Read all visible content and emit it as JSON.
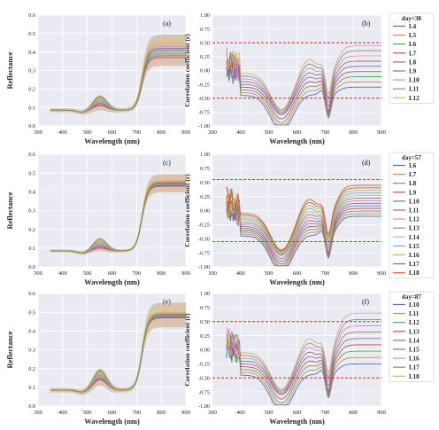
{
  "chart_data": [
    {
      "type": "line",
      "panel": "(a)",
      "title": "",
      "xlabel": "Wavelength (nm)",
      "ylabel": "Reflectance",
      "xlim": [
        300,
        900
      ],
      "ylim": [
        0,
        0.6
      ],
      "xticks": [
        300,
        400,
        500,
        600,
        700,
        800,
        900
      ],
      "yticks": [
        0,
        0.1,
        0.2,
        0.3,
        0.4,
        0.5,
        0.6
      ],
      "green_peak": 0.13,
      "nir_plateau": [
        0.37,
        0.45
      ],
      "band": 0.03,
      "grid": true
    },
    {
      "type": "line",
      "panel": "(b)",
      "title": "",
      "xlabel": "Wavelength (nm)",
      "ylabel": "Correlation coefficient (r)",
      "xlim": [
        300,
        900
      ],
      "ylim": [
        -1,
        1
      ],
      "xticks": [
        300,
        400,
        500,
        600,
        700,
        800,
        900
      ],
      "yticks": [
        -1,
        -0.75,
        -0.5,
        -0.25,
        0,
        0.25,
        0.5,
        0.75,
        1
      ],
      "threshold": 0.5,
      "legend": {
        "title": "day=38",
        "entries": [
          "L4",
          "L5",
          "L6",
          "L7",
          "L8",
          "L9",
          "L10",
          "L11",
          "L12"
        ]
      },
      "nir_level": [
        -0.3,
        0.45
      ],
      "grid": true
    },
    {
      "type": "line",
      "panel": "(c)",
      "title": "",
      "xlabel": "Wavelength (nm)",
      "ylabel": "Reflectance",
      "xlim": [
        300,
        900
      ],
      "ylim": [
        0,
        0.6
      ],
      "xticks": [
        300,
        400,
        500,
        600,
        700,
        800,
        900
      ],
      "yticks": [
        0,
        0.1,
        0.2,
        0.3,
        0.4,
        0.5,
        0.6
      ],
      "green_peak": 0.12,
      "nir_plateau": [
        0.43,
        0.46
      ],
      "band": 0.02,
      "grid": true
    },
    {
      "type": "line",
      "panel": "(d)",
      "title": "",
      "xlabel": "Wavelength (nm)",
      "ylabel": "Correlation coefficient (r)",
      "xlim": [
        300,
        900
      ],
      "ylim": [
        -1,
        1
      ],
      "xticks": [
        300,
        400,
        500,
        600,
        700,
        800,
        900
      ],
      "yticks": [
        -1,
        -0.75,
        -0.5,
        -0.25,
        0,
        0.25,
        0.5,
        0.75,
        1
      ],
      "threshold": 0.55,
      "legend": {
        "title": "day=57",
        "entries": [
          "L6",
          "L7",
          "L8",
          "L9",
          "L10",
          "L11",
          "L12",
          "L13",
          "L14",
          "L15",
          "L16",
          "L17",
          "L18"
        ]
      },
      "nir_level": [
        -0.1,
        0.45
      ],
      "grid": true
    },
    {
      "type": "line",
      "panel": "(e)",
      "title": "",
      "xlabel": "Wavelength (nm)",
      "ylabel": "Reflectance",
      "xlim": [
        300,
        900
      ],
      "ylim": [
        0,
        0.6
      ],
      "xticks": [
        300,
        400,
        500,
        600,
        700,
        800,
        900
      ],
      "yticks": [
        0,
        0.1,
        0.2,
        0.3,
        0.4,
        0.5,
        0.6
      ],
      "green_peak": 0.16,
      "nir_plateau": [
        0.47,
        0.5
      ],
      "band": 0.035,
      "grid": true
    },
    {
      "type": "line",
      "panel": "(f)",
      "title": "",
      "xlabel": "Wavelength (nm)",
      "ylabel": "Correlation coefficient (r)",
      "xlim": [
        300,
        900
      ],
      "ylim": [
        -1,
        1
      ],
      "xticks": [
        300,
        400,
        500,
        600,
        700,
        800,
        900
      ],
      "yticks": [
        -1,
        -0.75,
        -0.5,
        -0.25,
        0,
        0.25,
        0.5,
        0.75,
        1
      ],
      "threshold": 0.5,
      "legend": {
        "title": "day=87",
        "entries": [
          "L10",
          "L11",
          "L12",
          "L13",
          "L14",
          "L15",
          "L16",
          "L17",
          "L18"
        ]
      },
      "nir_level": [
        -0.25,
        0.65
      ],
      "grid": true
    }
  ],
  "series_colors": [
    "#4c72b0",
    "#dd8452",
    "#55a868",
    "#c44e52",
    "#8172b3",
    "#937860",
    "#da8bc3",
    "#8c8c8c",
    "#ccb974",
    "#64b5cd",
    "#e5ae38",
    "#6d904f",
    "#fc4f30"
  ],
  "colors": {
    "plot_background": "#eaeaf2",
    "gridline": "#ffffff",
    "threshold_line": "#e41a1c",
    "band": "#c8a27a"
  }
}
